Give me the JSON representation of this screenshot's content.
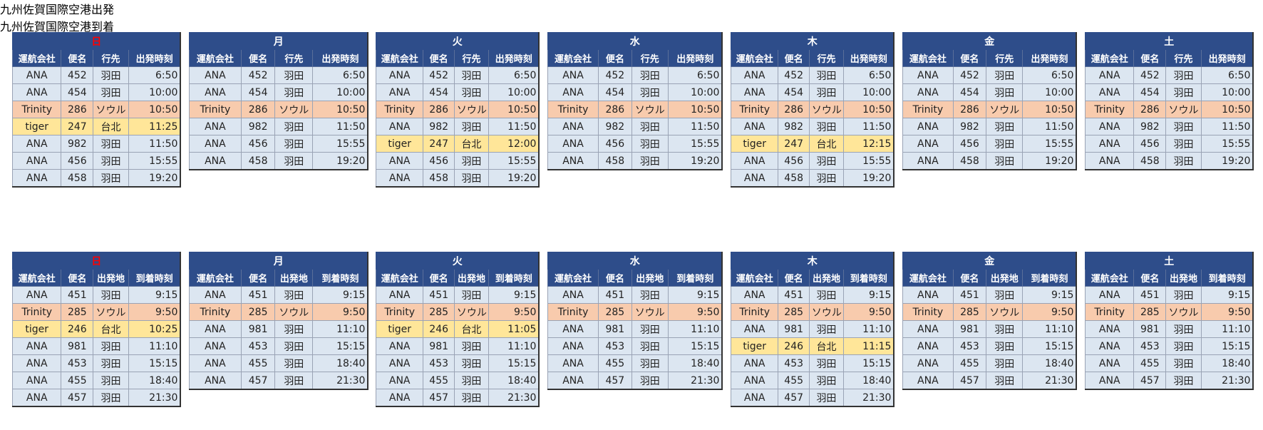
{
  "sections": [
    {
      "title": "九州佐賀国際空港出発",
      "tables": [
        {
          "day": "日",
          "day_color": "#ff0000",
          "columns": [
            "運航会社",
            "便名",
            "行先",
            "出発時刻"
          ],
          "rows": [
            [
              "ANA",
              "452",
              "羽田",
              "6:50"
            ],
            [
              "ANA",
              "454",
              "羽田",
              "10:00"
            ],
            [
              "Trinity",
              "286",
              "ソウル",
              "10:50"
            ],
            [
              "tiger",
              "247",
              "台北",
              "11:25"
            ],
            [
              "ANA",
              "982",
              "羽田",
              "11:50"
            ],
            [
              "ANA",
              "456",
              "羽田",
              "15:55"
            ],
            [
              "ANA",
              "458",
              "羽田",
              "19:20"
            ]
          ],
          "row_fills": [
            "#dce6f1",
            "#dce6f1",
            "#f8cbad",
            "#ffe699",
            "#dce6f1",
            "#dce6f1",
            "#dce6f1"
          ]
        },
        {
          "day": "月",
          "day_color": "#ffffff",
          "columns": [
            "運航会社",
            "便名",
            "行先",
            "出発時刻"
          ],
          "rows": [
            [
              "ANA",
              "452",
              "羽田",
              "6:50"
            ],
            [
              "ANA",
              "454",
              "羽田",
              "10:00"
            ],
            [
              "Trinity",
              "286",
              "ソウル",
              "10:50"
            ],
            [
              "ANA",
              "982",
              "羽田",
              "11:50"
            ],
            [
              "ANA",
              "456",
              "羽田",
              "15:55"
            ],
            [
              "ANA",
              "458",
              "羽田",
              "19:20"
            ]
          ],
          "row_fills": [
            "#dce6f1",
            "#dce6f1",
            "#f8cbad",
            "#dce6f1",
            "#dce6f1",
            "#dce6f1"
          ]
        },
        {
          "day": "火",
          "day_color": "#ffffff",
          "columns": [
            "運航会社",
            "便名",
            "行先",
            "出発時刻"
          ],
          "rows": [
            [
              "ANA",
              "452",
              "羽田",
              "6:50"
            ],
            [
              "ANA",
              "454",
              "羽田",
              "10:00"
            ],
            [
              "Trinity",
              "286",
              "ソウル",
              "10:50"
            ],
            [
              "ANA",
              "982",
              "羽田",
              "11:50"
            ],
            [
              "tiger",
              "247",
              "台北",
              "12:00"
            ],
            [
              "ANA",
              "456",
              "羽田",
              "15:55"
            ],
            [
              "ANA",
              "458",
              "羽田",
              "19:20"
            ]
          ],
          "row_fills": [
            "#dce6f1",
            "#dce6f1",
            "#f8cbad",
            "#dce6f1",
            "#ffe699",
            "#dce6f1",
            "#dce6f1"
          ]
        },
        {
          "day": "水",
          "day_color": "#ffffff",
          "columns": [
            "運航会社",
            "便名",
            "行先",
            "出発時刻"
          ],
          "rows": [
            [
              "ANA",
              "452",
              "羽田",
              "6:50"
            ],
            [
              "ANA",
              "454",
              "羽田",
              "10:00"
            ],
            [
              "Trinity",
              "286",
              "ソウル",
              "10:50"
            ],
            [
              "ANA",
              "982",
              "羽田",
              "11:50"
            ],
            [
              "ANA",
              "456",
              "羽田",
              "15:55"
            ],
            [
              "ANA",
              "458",
              "羽田",
              "19:20"
            ]
          ],
          "row_fills": [
            "#dce6f1",
            "#dce6f1",
            "#f8cbad",
            "#dce6f1",
            "#dce6f1",
            "#dce6f1"
          ]
        },
        {
          "day": "木",
          "day_color": "#ffffff",
          "columns": [
            "運航会社",
            "便名",
            "行先",
            "出発時刻"
          ],
          "rows": [
            [
              "ANA",
              "452",
              "羽田",
              "6:50"
            ],
            [
              "ANA",
              "454",
              "羽田",
              "10:00"
            ],
            [
              "Trinity",
              "286",
              "ソウル",
              "10:50"
            ],
            [
              "ANA",
              "982",
              "羽田",
              "11:50"
            ],
            [
              "tiger",
              "247",
              "台北",
              "12:15"
            ],
            [
              "ANA",
              "456",
              "羽田",
              "15:55"
            ],
            [
              "ANA",
              "458",
              "羽田",
              "19:20"
            ]
          ],
          "row_fills": [
            "#dce6f1",
            "#dce6f1",
            "#f8cbad",
            "#dce6f1",
            "#ffe699",
            "#dce6f1",
            "#dce6f1"
          ]
        },
        {
          "day": "金",
          "day_color": "#ffffff",
          "columns": [
            "運航会社",
            "便名",
            "行先",
            "出発時刻"
          ],
          "rows": [
            [
              "ANA",
              "452",
              "羽田",
              "6:50"
            ],
            [
              "ANA",
              "454",
              "羽田",
              "10:00"
            ],
            [
              "Trinity",
              "286",
              "ソウル",
              "10:50"
            ],
            [
              "ANA",
              "982",
              "羽田",
              "11:50"
            ],
            [
              "ANA",
              "456",
              "羽田",
              "15:55"
            ],
            [
              "ANA",
              "458",
              "羽田",
              "19:20"
            ]
          ],
          "row_fills": [
            "#dce6f1",
            "#dce6f1",
            "#f8cbad",
            "#dce6f1",
            "#dce6f1",
            "#dce6f1"
          ]
        },
        {
          "day": "土",
          "day_color": "#ffffff",
          "columns": [
            "運航会社",
            "便名",
            "行先",
            "出発時刻"
          ],
          "rows": [
            [
              "ANA",
              "452",
              "羽田",
              "6:50"
            ],
            [
              "ANA",
              "454",
              "羽田",
              "10:00"
            ],
            [
              "Trinity",
              "286",
              "ソウル",
              "10:50"
            ],
            [
              "ANA",
              "982",
              "羽田",
              "11:50"
            ],
            [
              "ANA",
              "456",
              "羽田",
              "15:55"
            ],
            [
              "ANA",
              "458",
              "羽田",
              "19:20"
            ]
          ],
          "row_fills": [
            "#dce6f1",
            "#dce6f1",
            "#f8cbad",
            "#dce6f1",
            "#dce6f1",
            "#dce6f1"
          ]
        }
      ]
    },
    {
      "title": "九州佐賀国際空港到着",
      "tables": [
        {
          "day": "日",
          "day_color": "#ff0000",
          "columns": [
            "運航会社",
            "便名",
            "出発地",
            "到着時刻"
          ],
          "rows": [
            [
              "ANA",
              "451",
              "羽田",
              "9:15"
            ],
            [
              "Trinity",
              "285",
              "ソウル",
              "9:50"
            ],
            [
              "tiger",
              "246",
              "台北",
              "10:25"
            ],
            [
              "ANA",
              "981",
              "羽田",
              "11:10"
            ],
            [
              "ANA",
              "453",
              "羽田",
              "15:15"
            ],
            [
              "ANA",
              "455",
              "羽田",
              "18:40"
            ],
            [
              "ANA",
              "457",
              "羽田",
              "21:30"
            ]
          ],
          "row_fills": [
            "#dce6f1",
            "#f8cbad",
            "#ffe699",
            "#dce6f1",
            "#dce6f1",
            "#dce6f1",
            "#dce6f1"
          ]
        },
        {
          "day": "月",
          "day_color": "#ffffff",
          "columns": [
            "運航会社",
            "便名",
            "出発地",
            "到着時刻"
          ],
          "rows": [
            [
              "ANA",
              "451",
              "羽田",
              "9:15"
            ],
            [
              "Trinity",
              "285",
              "ソウル",
              "9:50"
            ],
            [
              "ANA",
              "981",
              "羽田",
              "11:10"
            ],
            [
              "ANA",
              "453",
              "羽田",
              "15:15"
            ],
            [
              "ANA",
              "455",
              "羽田",
              "18:40"
            ],
            [
              "ANA",
              "457",
              "羽田",
              "21:30"
            ]
          ],
          "row_fills": [
            "#dce6f1",
            "#f8cbad",
            "#dce6f1",
            "#dce6f1",
            "#dce6f1",
            "#dce6f1"
          ]
        },
        {
          "day": "火",
          "day_color": "#ffffff",
          "columns": [
            "運航会社",
            "便名",
            "出発地",
            "到着時刻"
          ],
          "rows": [
            [
              "ANA",
              "451",
              "羽田",
              "9:15"
            ],
            [
              "Trinity",
              "285",
              "ソウル",
              "9:50"
            ],
            [
              "tiger",
              "246",
              "台北",
              "11:05"
            ],
            [
              "ANA",
              "981",
              "羽田",
              "11:10"
            ],
            [
              "ANA",
              "453",
              "羽田",
              "15:15"
            ],
            [
              "ANA",
              "455",
              "羽田",
              "18:40"
            ],
            [
              "ANA",
              "457",
              "羽田",
              "21:30"
            ]
          ],
          "row_fills": [
            "#dce6f1",
            "#f8cbad",
            "#ffe699",
            "#dce6f1",
            "#dce6f1",
            "#dce6f1",
            "#dce6f1"
          ]
        },
        {
          "day": "水",
          "day_color": "#ffffff",
          "columns": [
            "運航会社",
            "便名",
            "出発地",
            "到着時刻"
          ],
          "rows": [
            [
              "ANA",
              "451",
              "羽田",
              "9:15"
            ],
            [
              "Trinity",
              "285",
              "ソウル",
              "9:50"
            ],
            [
              "ANA",
              "981",
              "羽田",
              "11:10"
            ],
            [
              "ANA",
              "453",
              "羽田",
              "15:15"
            ],
            [
              "ANA",
              "455",
              "羽田",
              "18:40"
            ],
            [
              "ANA",
              "457",
              "羽田",
              "21:30"
            ]
          ],
          "row_fills": [
            "#dce6f1",
            "#f8cbad",
            "#dce6f1",
            "#dce6f1",
            "#dce6f1",
            "#dce6f1"
          ]
        },
        {
          "day": "木",
          "day_color": "#ffffff",
          "columns": [
            "運航会社",
            "便名",
            "出発地",
            "到着時刻"
          ],
          "rows": [
            [
              "ANA",
              "451",
              "羽田",
              "9:15"
            ],
            [
              "Trinity",
              "285",
              "ソウル",
              "9:50"
            ],
            [
              "ANA",
              "981",
              "羽田",
              "11:10"
            ],
            [
              "tiger",
              "246",
              "台北",
              "11:15"
            ],
            [
              "ANA",
              "453",
              "羽田",
              "15:15"
            ],
            [
              "ANA",
              "455",
              "羽田",
              "18:40"
            ],
            [
              "ANA",
              "457",
              "羽田",
              "21:30"
            ]
          ],
          "row_fills": [
            "#dce6f1",
            "#f8cbad",
            "#dce6f1",
            "#ffe699",
            "#dce6f1",
            "#dce6f1",
            "#dce6f1"
          ]
        },
        {
          "day": "金",
          "day_color": "#ffffff",
          "columns": [
            "運航会社",
            "便名",
            "出発地",
            "到着時刻"
          ],
          "rows": [
            [
              "ANA",
              "451",
              "羽田",
              "9:15"
            ],
            [
              "Trinity",
              "285",
              "ソウル",
              "9:50"
            ],
            [
              "ANA",
              "981",
              "羽田",
              "11:10"
            ],
            [
              "ANA",
              "453",
              "羽田",
              "15:15"
            ],
            [
              "ANA",
              "455",
              "羽田",
              "18:40"
            ],
            [
              "ANA",
              "457",
              "羽田",
              "21:30"
            ]
          ],
          "row_fills": [
            "#dce6f1",
            "#f8cbad",
            "#dce6f1",
            "#dce6f1",
            "#dce6f1",
            "#dce6f1"
          ]
        },
        {
          "day": "土",
          "day_color": "#ffffff",
          "columns": [
            "運航会社",
            "便名",
            "出発地",
            "到着時刻"
          ],
          "rows": [
            [
              "ANA",
              "451",
              "羽田",
              "9:15"
            ],
            [
              "Trinity",
              "285",
              "ソウル",
              "9:50"
            ],
            [
              "ANA",
              "981",
              "羽田",
              "11:10"
            ],
            [
              "ANA",
              "453",
              "羽田",
              "15:15"
            ],
            [
              "ANA",
              "455",
              "羽田",
              "18:40"
            ],
            [
              "ANA",
              "457",
              "羽田",
              "21:30"
            ]
          ],
          "row_fills": [
            "#dce6f1",
            "#f8cbad",
            "#dce6f1",
            "#dce6f1",
            "#dce6f1",
            "#dce6f1"
          ]
        }
      ]
    }
  ]
}
